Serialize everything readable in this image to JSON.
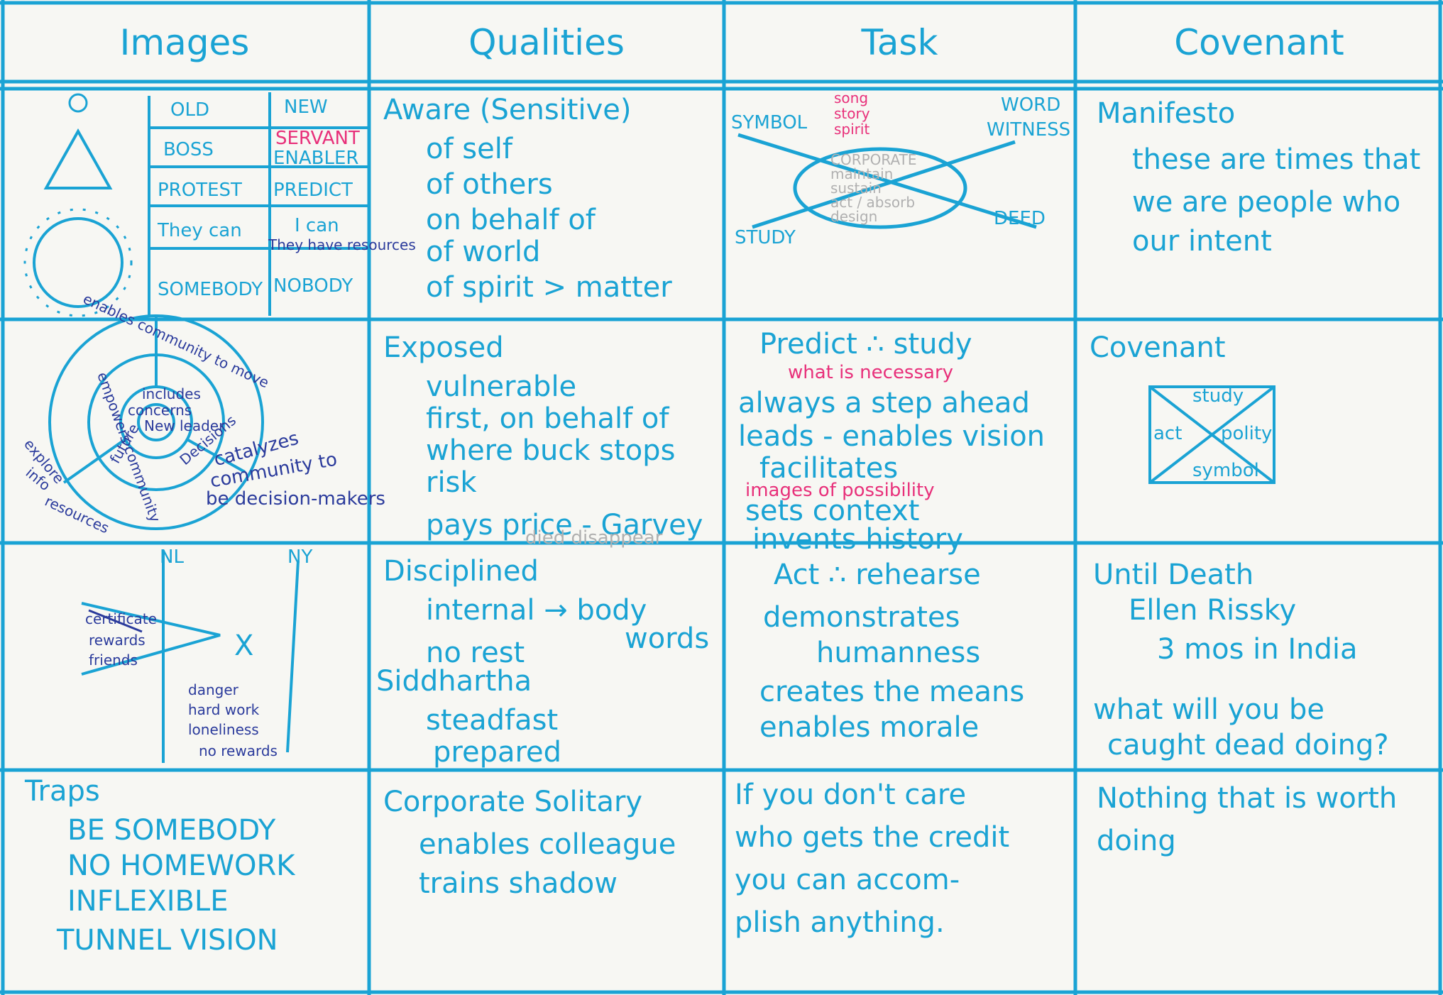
{
  "header": [
    "Images",
    "Qualities",
    "Task",
    "Covenant"
  ],
  "rows": [
    {
      "images": {
        "table": [
          [
            "OLD",
            "NEW"
          ],
          [
            "BOSS",
            "ENABLER"
          ],
          [
            "PROTEST",
            "PREDICT"
          ],
          [
            "They can",
            "I can"
          ],
          [
            "SOMEBODY",
            "NOBODY"
          ]
        ],
        "notes": [
          "SERVANT",
          "They have resources"
        ]
      },
      "qualities": [
        "Aware (Sensitive)",
        "of self",
        "of others",
        "on behalf of",
        "of world",
        "of spirit > matter"
      ],
      "task": {
        "labels": [
          "SYMBOL",
          "song",
          "story",
          "spirit",
          "WORD",
          "WITNESS",
          "STUDY",
          "DEED"
        ],
        "center": [
          "CORPORATE",
          "maintain",
          "sustain",
          "act / absorb",
          "design"
        ]
      },
      "covenant": [
        "Manifesto",
        "these are times that",
        "we are people who",
        "our intent"
      ]
    },
    {
      "images": {
        "labels": [
          "enables community to move",
          "includes",
          "concerns",
          "New leader",
          "future",
          "Decisions",
          "empowers community",
          "explore",
          "info",
          "resources",
          "catalyzes",
          "community to",
          "be decision-makers"
        ]
      },
      "qualities": [
        "Exposed",
        "vulnerable",
        "first, on behalf of",
        "where buck stops",
        "risk",
        "pays price - Garvey",
        "died disappear"
      ],
      "task": [
        "Predict ∴ study",
        "what is necessary",
        "always a step ahead",
        "leads - enables vision",
        "facilitates",
        "images of possibility",
        "sets context",
        "invents history"
      ],
      "covenant": {
        "title": "Covenant",
        "labels": [
          "study",
          "act",
          "polity",
          "symbol"
        ]
      }
    },
    {
      "images": {
        "labels": [
          "NL",
          "NY",
          "certificate",
          "rewards",
          "friends",
          "X",
          "danger",
          "hard work",
          "loneliness",
          "no rewards"
        ]
      },
      "qualities": [
        "Disciplined",
        "internal → body",
        "words",
        "no rest",
        "Siddhartha",
        "steadfast",
        "prepared"
      ],
      "task": [
        "Act ∴ rehearse",
        "demonstrates",
        "humanness",
        "creates the means",
        "enables morale"
      ],
      "covenant": [
        "Until Death",
        "Ellen Rissky",
        "3 mos in India",
        "what will you be",
        "caught dead doing?"
      ]
    },
    {
      "images": [
        "Traps",
        "BE SOMEBODY",
        "NO HOMEWORK",
        "INFLEXIBLE",
        "TUNNEL VISION"
      ],
      "qualities": [
        "Corporate Solitary",
        "enables colleague",
        "trains shadow"
      ],
      "task": [
        "If you don't care",
        "who gets the credit",
        "you can accom-",
        "plish anything."
      ],
      "covenant": [
        "Nothing that is worth",
        "doing"
      ]
    }
  ]
}
